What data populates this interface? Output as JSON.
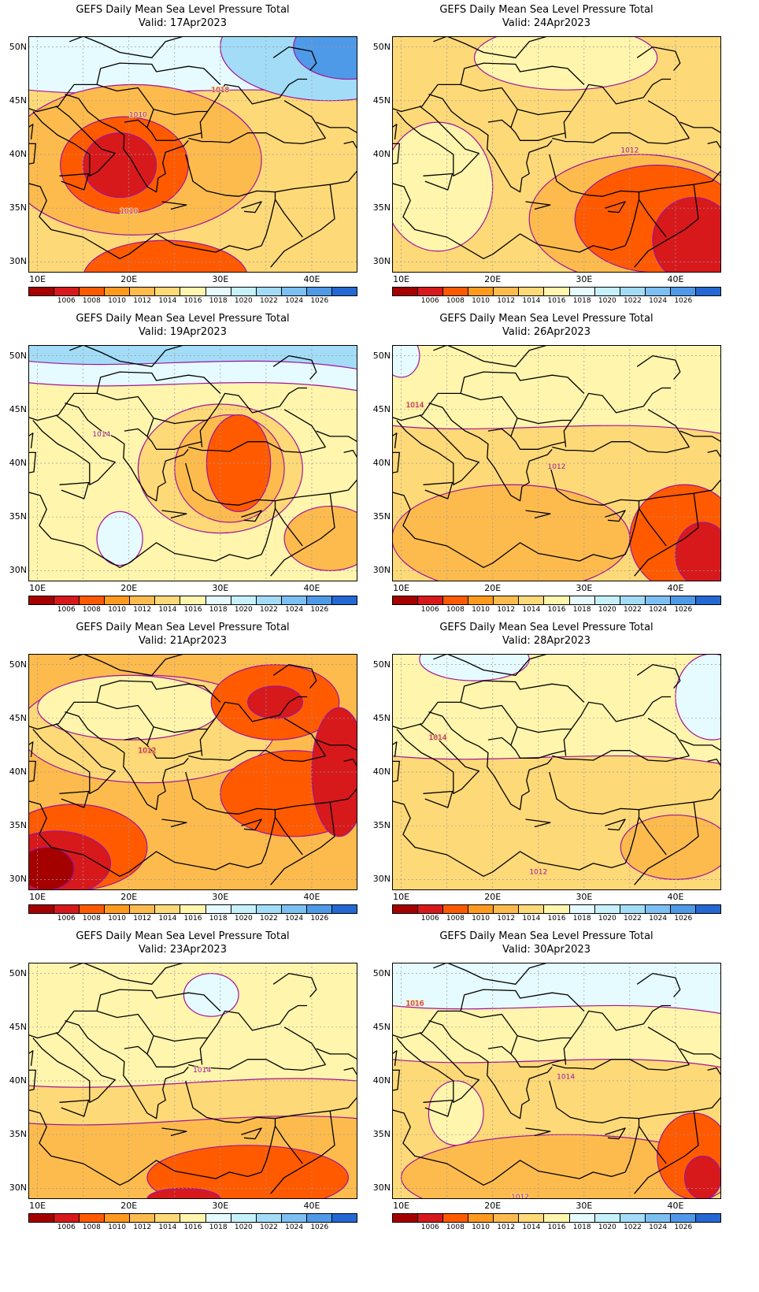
{
  "palette": [
    "#a50000",
    "#d7191c",
    "#ff5a00",
    "#ff9a1f",
    "#fdbb4d",
    "#fed978",
    "#fff5ad",
    "#e6fbff",
    "#c6f1fb",
    "#a3dcf7",
    "#7cbff2",
    "#4f9ae8",
    "#2468d3"
  ],
  "colorbar_labels": [
    "1006",
    "1008",
    "1010",
    "1012",
    "1014",
    "1016",
    "1018",
    "1020",
    "1022",
    "1024",
    "1026"
  ],
  "lat_labels": [
    "50N",
    "45N",
    "40N",
    "35N",
    "30N"
  ],
  "lon_labels": [
    "10E",
    "20E",
    "30E",
    "40E"
  ],
  "panels": [
    {
      "title": "GEFS Daily Mean Sea Level Pressure Total",
      "valid": "Valid: 17Apr2023",
      "base_color": "#fed978",
      "contour_labels": [
        {
          "text": "1018",
          "lon": 30.0,
          "lat": 45.8
        },
        {
          "text": "1010",
          "lon": 21.0,
          "lat": 43.5
        },
        {
          "text": "1010",
          "lon": 20.0,
          "lat": 34.5
        }
      ],
      "shapes": [
        {
          "c": "#e6fbff",
          "kind": "band-top",
          "y": 46.0
        },
        {
          "c": "#a3dcf7",
          "kind": "ellipse",
          "lon": 42,
          "lat": 50,
          "rx": 12,
          "ry": 5
        },
        {
          "c": "#4f9ae8",
          "kind": "ellipse",
          "lon": 44,
          "lat": 50,
          "rx": 6,
          "ry": 3
        },
        {
          "c": "#fdbb4d",
          "kind": "ellipse",
          "lon": 20.5,
          "lat": 39.5,
          "rx": 14,
          "ry": 7
        },
        {
          "c": "#ff5a00",
          "kind": "ellipse",
          "lon": 19.5,
          "lat": 39.0,
          "rx": 7,
          "ry": 4.5
        },
        {
          "c": "#d7191c",
          "kind": "ellipse",
          "lon": 19.0,
          "lat": 39.0,
          "rx": 4,
          "ry": 3
        },
        {
          "c": "#ff5a00",
          "kind": "ellipse",
          "lon": 24,
          "lat": 28.5,
          "rx": 9,
          "ry": 3.5
        }
      ]
    },
    {
      "title": "GEFS Daily Mean Sea Level Pressure Total",
      "valid": "Valid: 24Apr2023",
      "base_color": "#fed978",
      "contour_labels": [
        {
          "text": "1012",
          "lon": 35.0,
          "lat": 40.2
        }
      ],
      "shapes": [
        {
          "c": "#fff5ad",
          "kind": "ellipse",
          "lon": 14,
          "lat": 37,
          "rx": 6,
          "ry": 6
        },
        {
          "c": "#fff5ad",
          "kind": "ellipse",
          "lon": 28,
          "lat": 49,
          "rx": 10,
          "ry": 3
        },
        {
          "c": "#fdbb4d",
          "kind": "ellipse",
          "lon": 36,
          "lat": 34,
          "rx": 12,
          "ry": 6
        },
        {
          "c": "#ff5a00",
          "kind": "ellipse",
          "lon": 38,
          "lat": 34,
          "rx": 9,
          "ry": 5
        },
        {
          "c": "#d7191c",
          "kind": "ellipse",
          "lon": 42,
          "lat": 32,
          "rx": 4.5,
          "ry": 4
        }
      ]
    },
    {
      "title": "GEFS Daily Mean Sea Level Pressure Total",
      "valid": "Valid: 19Apr2023",
      "base_color": "#fff5ad",
      "contour_labels": [
        {
          "text": "1014",
          "lon": 17.0,
          "lat": 42.5
        }
      ],
      "shapes": [
        {
          "c": "#e6fbff",
          "kind": "band-top",
          "y": 47.5
        },
        {
          "c": "#a3dcf7",
          "kind": "band-top",
          "y": 49.5
        },
        {
          "c": "#e6fbff",
          "kind": "ellipse",
          "lon": 19,
          "lat": 33,
          "rx": 2.5,
          "ry": 2.5
        },
        {
          "c": "#fed978",
          "kind": "ellipse",
          "lon": 30,
          "lat": 39.5,
          "rx": 9,
          "ry": 6
        },
        {
          "c": "#fdbb4d",
          "kind": "ellipse",
          "lon": 31,
          "lat": 39.5,
          "rx": 6,
          "ry": 5
        },
        {
          "c": "#ff5a00",
          "kind": "ellipse",
          "lon": 32,
          "lat": 40,
          "rx": 3.5,
          "ry": 4.5
        },
        {
          "c": "#fdbb4d",
          "kind": "ellipse",
          "lon": 42,
          "lat": 33,
          "rx": 5,
          "ry": 3
        }
      ]
    },
    {
      "title": "GEFS Daily Mean Sea Level Pressure Total",
      "valid": "Valid: 26Apr2023",
      "base_color": "#fed978",
      "contour_labels": [
        {
          "text": "1014",
          "lon": 11.5,
          "lat": 45.2
        },
        {
          "text": "1012",
          "lon": 27.0,
          "lat": 39.5
        }
      ],
      "shapes": [
        {
          "c": "#fff5ad",
          "kind": "band-top",
          "y": 43.5
        },
        {
          "c": "#e6fbff",
          "kind": "ellipse",
          "lon": 10,
          "lat": 50,
          "rx": 2,
          "ry": 2
        },
        {
          "c": "#fdbb4d",
          "kind": "ellipse",
          "lon": 22,
          "lat": 33,
          "rx": 13,
          "ry": 5
        },
        {
          "c": "#ff5a00",
          "kind": "ellipse",
          "lon": 41,
          "lat": 33,
          "rx": 6,
          "ry": 5
        },
        {
          "c": "#d7191c",
          "kind": "ellipse",
          "lon": 43,
          "lat": 31.5,
          "rx": 3,
          "ry": 3
        }
      ]
    },
    {
      "title": "GEFS Daily Mean Sea Level Pressure Total",
      "valid": "Valid: 21Apr2023",
      "base_color": "#fdbb4d",
      "contour_labels": [
        {
          "text": "1012",
          "lon": 22.0,
          "lat": 41.8
        }
      ],
      "shapes": [
        {
          "c": "#fed978",
          "kind": "ellipse",
          "lon": 22,
          "lat": 44,
          "rx": 14,
          "ry": 5
        },
        {
          "c": "#fff5ad",
          "kind": "ellipse",
          "lon": 20,
          "lat": 46,
          "rx": 10,
          "ry": 3
        },
        {
          "c": "#ff5a00",
          "kind": "ellipse",
          "lon": 36,
          "lat": 46.5,
          "rx": 7,
          "ry": 3.5
        },
        {
          "c": "#d7191c",
          "kind": "ellipse",
          "lon": 36,
          "lat": 46.5,
          "rx": 3,
          "ry": 1.5
        },
        {
          "c": "#ff5a00",
          "kind": "ellipse",
          "lon": 38,
          "lat": 38,
          "rx": 8,
          "ry": 4
        },
        {
          "c": "#d7191c",
          "kind": "ellipse",
          "lon": 43,
          "lat": 40,
          "rx": 3,
          "ry": 6
        },
        {
          "c": "#ff5a00",
          "kind": "ellipse",
          "lon": 14,
          "lat": 33,
          "rx": 8,
          "ry": 4
        },
        {
          "c": "#d7191c",
          "kind": "ellipse",
          "lon": 12,
          "lat": 31.5,
          "rx": 6,
          "ry": 3
        },
        {
          "c": "#a50000",
          "kind": "ellipse",
          "lon": 11,
          "lat": 31,
          "rx": 3,
          "ry": 2
        }
      ]
    },
    {
      "title": "GEFS Daily Mean Sea Level Pressure Total",
      "valid": "Valid: 28Apr2023",
      "base_color": "#fed978",
      "contour_labels": [
        {
          "text": "1014",
          "lon": 14.0,
          "lat": 43.0
        },
        {
          "text": "1012",
          "lon": 25.0,
          "lat": 30.5
        }
      ],
      "shapes": [
        {
          "c": "#fff5ad",
          "kind": "band-top",
          "y": 41.5
        },
        {
          "c": "#e6fbff",
          "kind": "ellipse",
          "lon": 18,
          "lat": 50.5,
          "rx": 6,
          "ry": 2
        },
        {
          "c": "#e6fbff",
          "kind": "ellipse",
          "lon": 44,
          "lat": 47,
          "rx": 4,
          "ry": 4
        },
        {
          "c": "#fdbb4d",
          "kind": "ellipse",
          "lon": 40,
          "lat": 33,
          "rx": 6,
          "ry": 3
        }
      ]
    },
    {
      "title": "GEFS Daily Mean Sea Level Pressure Total",
      "valid": "Valid: 23Apr2023",
      "base_color": "#fff5ad",
      "contour_labels": [
        {
          "text": "1014",
          "lon": 28.0,
          "lat": 40.8
        }
      ],
      "shapes": [
        {
          "c": "#e6fbff",
          "kind": "ellipse",
          "lon": 29,
          "lat": 48,
          "rx": 3,
          "ry": 2
        },
        {
          "c": "#fed978",
          "kind": "band-bottom",
          "y": 40.0
        },
        {
          "c": "#fdbb4d",
          "kind": "band-bottom",
          "y": 36.5
        },
        {
          "c": "#ff5a00",
          "kind": "ellipse",
          "lon": 33,
          "lat": 31,
          "rx": 11,
          "ry": 3
        },
        {
          "c": "#d7191c",
          "kind": "ellipse",
          "lon": 26,
          "lat": 29,
          "rx": 4,
          "ry": 1
        }
      ]
    },
    {
      "title": "GEFS Daily Mean Sea Level Pressure Total",
      "valid": "Valid: 30Apr2023",
      "base_color": "#fed978",
      "contour_labels": [
        {
          "text": "1016",
          "lon": 11.5,
          "lat": 47.0
        },
        {
          "text": "1014",
          "lon": 28.0,
          "lat": 40.2
        },
        {
          "text": "1012",
          "lon": 23.0,
          "lat": 29.0
        }
      ],
      "shapes": [
        {
          "c": "#fff5ad",
          "kind": "band-top",
          "y": 42.0
        },
        {
          "c": "#e6fbff",
          "kind": "band-top",
          "y": 47.0
        },
        {
          "c": "#fff5ad",
          "kind": "ellipse",
          "lon": 16,
          "lat": 37,
          "rx": 3,
          "ry": 3
        },
        {
          "c": "#fdbb4d",
          "kind": "ellipse",
          "lon": 28,
          "lat": 31,
          "rx": 18,
          "ry": 4
        },
        {
          "c": "#ff5a00",
          "kind": "ellipse",
          "lon": 42,
          "lat": 33,
          "rx": 4,
          "ry": 4
        },
        {
          "c": "#d7191c",
          "kind": "ellipse",
          "lon": 43,
          "lat": 31,
          "rx": 2,
          "ry": 2
        }
      ]
    }
  ]
}
